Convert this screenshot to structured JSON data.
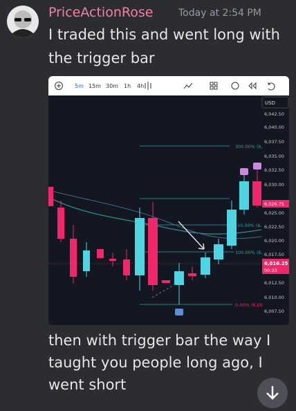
{
  "message": {
    "author": "PriceActionRose",
    "timestamp": "Today at 2:54 PM",
    "lines_before": [
      "I traded this and went long with",
      "the trigger bar"
    ],
    "lines_after": [
      "then with trigger bar the way I",
      "taught you people long ago, I",
      "went short"
    ]
  },
  "chart": {
    "toolbar": [
      "5m",
      "15m",
      "30m",
      "1h",
      "4h"
    ],
    "currency": "USD",
    "price_labels": [
      "6,042.50",
      "6,040.00",
      "6,037.50",
      "6,035.00",
      "6,032.50",
      "6,030.00",
      "6,025.00",
      "6,022.50",
      "6,020.00",
      "6,017.50",
      "6,012.50",
      "6,010.00",
      "6,007.50"
    ],
    "current_price": "6,016.25",
    "countdown": "00:33",
    "marker_price": "6,026.75",
    "fib_labels": [
      "300.00% (6,",
      "50.00% (6,",
      "100.00% (6,",
      "0.00% (6,00"
    ]
  }
}
